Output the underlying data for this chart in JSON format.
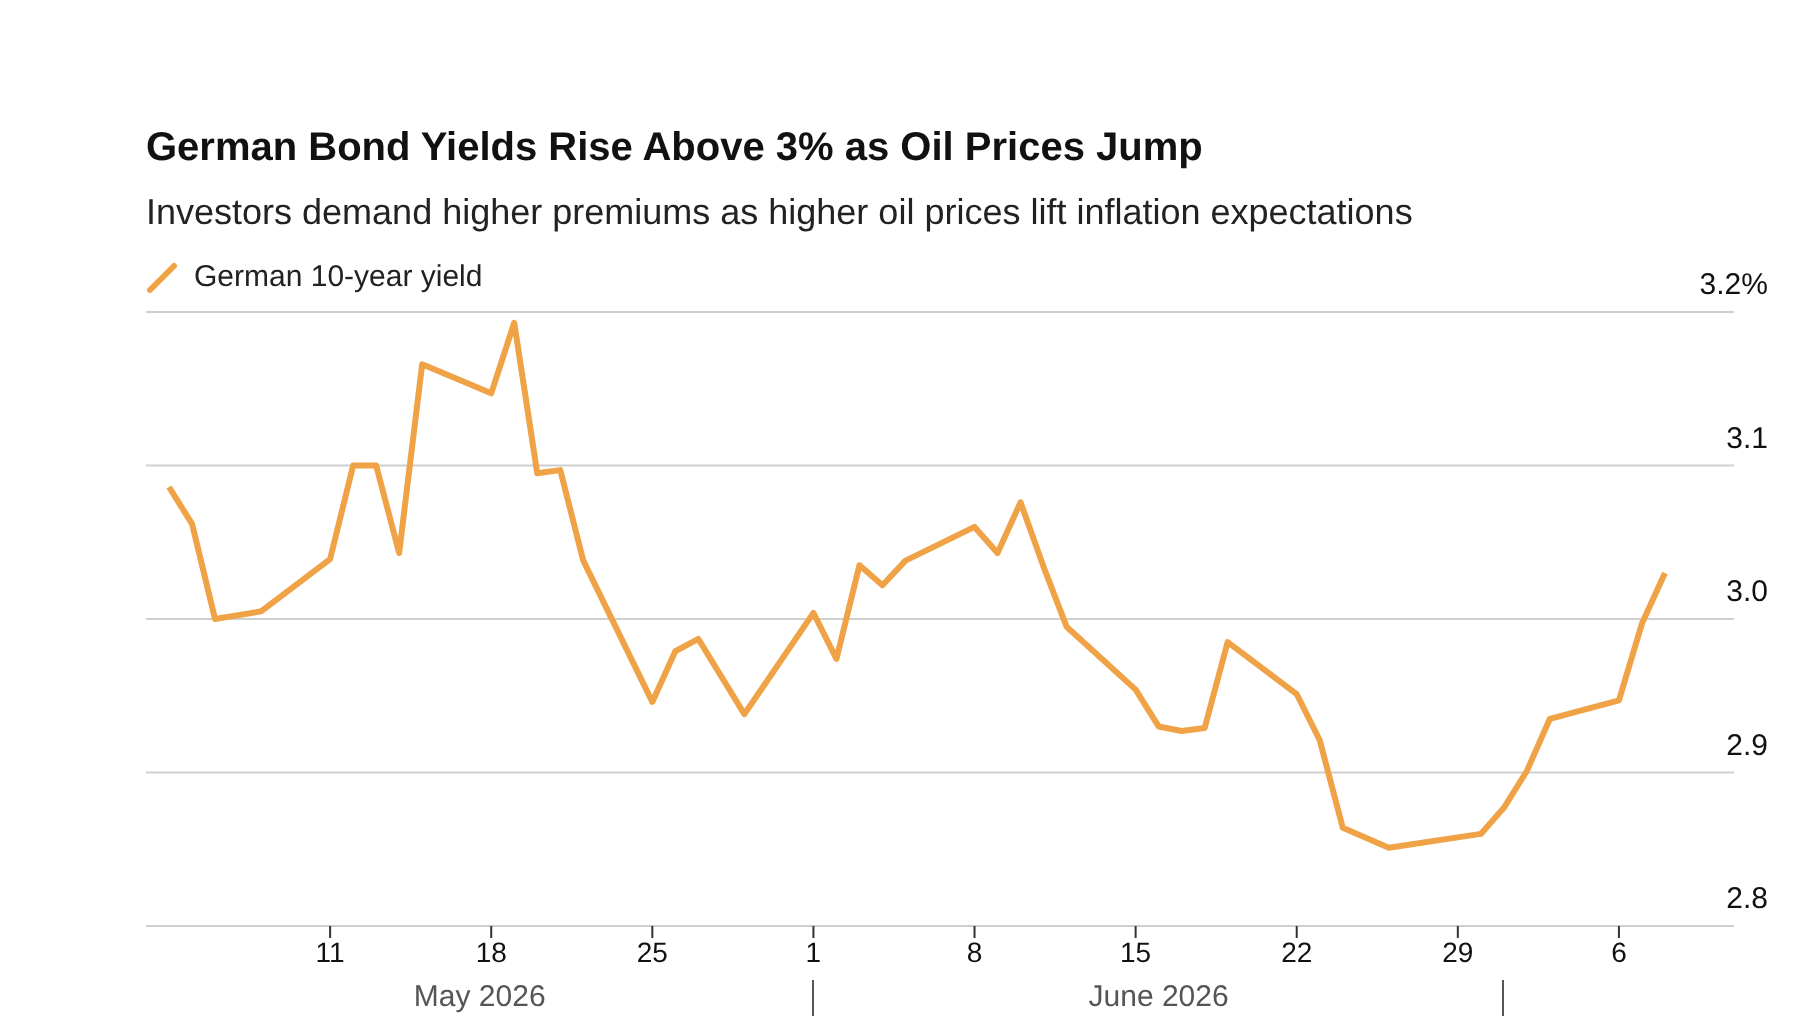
{
  "chart_data": {
    "type": "line",
    "title": "German Bond Yields Rise Above 3% as Oil Prices Jump",
    "subtitle": "Investors demand higher premiums as higher oil prices lift inflation expectations",
    "x": [
      "2026-05-04",
      "2026-05-05",
      "2026-05-06",
      "2026-05-08",
      "2026-05-11",
      "2026-05-12",
      "2026-05-13",
      "2026-05-14",
      "2026-05-15",
      "2026-05-18",
      "2026-05-19",
      "2026-05-20",
      "2026-05-21",
      "2026-05-22",
      "2026-05-25",
      "2026-05-26",
      "2026-05-27",
      "2026-05-29",
      "2026-06-01",
      "2026-06-02",
      "2026-06-03",
      "2026-06-04",
      "2026-06-05",
      "2026-06-08",
      "2026-06-09",
      "2026-06-10",
      "2026-06-11",
      "2026-06-12",
      "2026-06-15",
      "2026-06-16",
      "2026-06-17",
      "2026-06-18",
      "2026-06-19",
      "2026-06-22",
      "2026-06-23",
      "2026-06-24",
      "2026-06-26",
      "2026-06-30",
      "2026-07-01",
      "2026-07-02",
      "2026-07-03",
      "2026-07-06",
      "2026-07-07",
      "2026-07-08"
    ],
    "series": [
      {
        "name": "German 10-year yield",
        "color": "#f0a346",
        "values": [
          3.086,
          3.062,
          3.0,
          3.005,
          3.039,
          3.1,
          3.1,
          3.043,
          3.166,
          3.147,
          3.193,
          3.095,
          3.097,
          3.038,
          2.946,
          2.979,
          2.987,
          2.938,
          3.004,
          2.974,
          3.035,
          3.022,
          3.038,
          3.06,
          3.043,
          3.076,
          3.034,
          2.995,
          2.954,
          2.93,
          2.927,
          2.929,
          2.985,
          2.951,
          2.921,
          2.864,
          2.851,
          2.86,
          2.877,
          2.901,
          2.935,
          2.947,
          2.997,
          3.03
        ]
      }
    ],
    "xlim": [
      "2026-05-03",
      "2026-07-11"
    ],
    "xticks": [
      {
        "value": "2026-05-11",
        "label": "11"
      },
      {
        "value": "2026-05-18",
        "label": "18"
      },
      {
        "value": "2026-05-25",
        "label": "25"
      },
      {
        "value": "2026-06-01",
        "label": "1"
      },
      {
        "value": "2026-06-08",
        "label": "8"
      },
      {
        "value": "2026-06-15",
        "label": "15"
      },
      {
        "value": "2026-06-22",
        "label": "22"
      },
      {
        "value": "2026-06-29",
        "label": "29"
      },
      {
        "value": "2026-07-06",
        "label": "6"
      }
    ],
    "ylim": [
      2.8,
      3.2
    ],
    "yticks": [
      {
        "value": 2.8,
        "label": "2.8"
      },
      {
        "value": 2.9,
        "label": "2.9"
      },
      {
        "value": 3.0,
        "label": "3.0"
      },
      {
        "value": 3.1,
        "label": "3.1"
      },
      {
        "value": 3.2,
        "label": "3.2%"
      }
    ],
    "annotations": [
      "May 2026",
      "June 2026"
    ],
    "grid": "y",
    "legend": "top left",
    "marker": "none",
    "line_style": "solid"
  }
}
